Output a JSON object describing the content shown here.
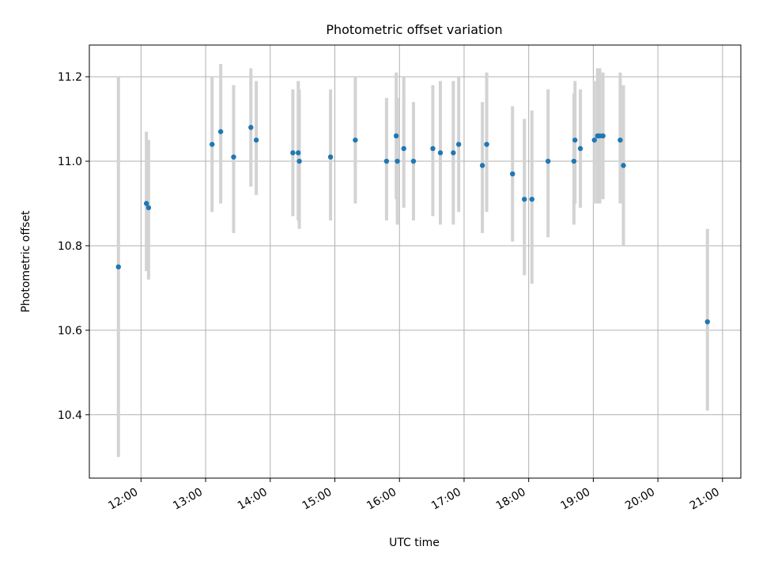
{
  "chart_data": {
    "type": "scatter",
    "title": "Photometric offset variation",
    "xlabel": "UTC time",
    "ylabel": "Photometric offset",
    "x_is_time": true,
    "xlim": [
      "11:12",
      "21:17"
    ],
    "ylim": [
      10.25,
      11.275
    ],
    "xticks": [
      "12:00",
      "13:00",
      "14:00",
      "15:00",
      "16:00",
      "17:00",
      "18:00",
      "19:00",
      "20:00",
      "21:00"
    ],
    "yticks": [
      10.4,
      10.6,
      10.8,
      11.0,
      11.2
    ],
    "ytick_labels": [
      "10.4",
      "10.6",
      "10.8",
      "11.0",
      "11.2"
    ],
    "grid": true,
    "marker_color": "#1f77b4",
    "errorbar_color": "#d3d3d3",
    "points": [
      {
        "t": "11:39",
        "y": 10.75,
        "lo": 10.3,
        "hi": 11.2
      },
      {
        "t": "12:05",
        "y": 10.9,
        "lo": 10.74,
        "hi": 11.07
      },
      {
        "t": "12:07",
        "y": 10.89,
        "lo": 10.72,
        "hi": 11.05
      },
      {
        "t": "13:06",
        "y": 11.04,
        "lo": 10.88,
        "hi": 11.2
      },
      {
        "t": "13:14",
        "y": 11.07,
        "lo": 10.9,
        "hi": 11.23
      },
      {
        "t": "13:26",
        "y": 11.01,
        "lo": 10.83,
        "hi": 11.18
      },
      {
        "t": "13:42",
        "y": 11.08,
        "lo": 10.94,
        "hi": 11.22
      },
      {
        "t": "13:47",
        "y": 11.05,
        "lo": 10.92,
        "hi": 11.19
      },
      {
        "t": "14:21",
        "y": 11.02,
        "lo": 10.87,
        "hi": 11.17
      },
      {
        "t": "14:26",
        "y": 11.02,
        "lo": 10.86,
        "hi": 11.19
      },
      {
        "t": "14:27",
        "y": 11.0,
        "lo": 10.84,
        "hi": 11.17
      },
      {
        "t": "14:56",
        "y": 11.01,
        "lo": 10.86,
        "hi": 11.17
      },
      {
        "t": "15:19",
        "y": 11.05,
        "lo": 10.9,
        "hi": 11.2
      },
      {
        "t": "15:48",
        "y": 11.0,
        "lo": 10.86,
        "hi": 11.15
      },
      {
        "t": "15:57",
        "y": 11.06,
        "lo": 10.91,
        "hi": 11.21
      },
      {
        "t": "15:58",
        "y": 11.0,
        "lo": 10.85,
        "hi": 11.15
      },
      {
        "t": "16:04",
        "y": 11.03,
        "lo": 10.89,
        "hi": 11.2
      },
      {
        "t": "16:13",
        "y": 11.0,
        "lo": 10.86,
        "hi": 11.14
      },
      {
        "t": "16:31",
        "y": 11.03,
        "lo": 10.87,
        "hi": 11.18
      },
      {
        "t": "16:38",
        "y": 11.02,
        "lo": 10.85,
        "hi": 11.19
      },
      {
        "t": "16:50",
        "y": 11.02,
        "lo": 10.85,
        "hi": 11.19
      },
      {
        "t": "16:55",
        "y": 11.04,
        "lo": 10.88,
        "hi": 11.2
      },
      {
        "t": "17:17",
        "y": 10.99,
        "lo": 10.83,
        "hi": 11.14
      },
      {
        "t": "17:21",
        "y": 11.04,
        "lo": 10.88,
        "hi": 11.21
      },
      {
        "t": "17:45",
        "y": 10.97,
        "lo": 10.81,
        "hi": 11.13
      },
      {
        "t": "17:56",
        "y": 10.91,
        "lo": 10.73,
        "hi": 11.1
      },
      {
        "t": "18:03",
        "y": 10.91,
        "lo": 10.71,
        "hi": 11.12
      },
      {
        "t": "18:18",
        "y": 11.0,
        "lo": 10.82,
        "hi": 11.17
      },
      {
        "t": "18:42",
        "y": 11.0,
        "lo": 10.85,
        "hi": 11.16
      },
      {
        "t": "18:43",
        "y": 11.05,
        "lo": 10.9,
        "hi": 11.19
      },
      {
        "t": "18:48",
        "y": 11.03,
        "lo": 10.89,
        "hi": 11.17
      },
      {
        "t": "19:01",
        "y": 11.05,
        "lo": 10.9,
        "hi": 11.19
      },
      {
        "t": "19:04",
        "y": 11.06,
        "lo": 10.9,
        "hi": 11.22
      },
      {
        "t": "19:06",
        "y": 11.06,
        "lo": 10.9,
        "hi": 11.22
      },
      {
        "t": "19:09",
        "y": 11.06,
        "lo": 10.91,
        "hi": 11.21
      },
      {
        "t": "19:25",
        "y": 11.05,
        "lo": 10.9,
        "hi": 11.21
      },
      {
        "t": "19:28",
        "y": 10.99,
        "lo": 10.8,
        "hi": 11.18
      },
      {
        "t": "20:46",
        "y": 10.62,
        "lo": 10.41,
        "hi": 10.84
      }
    ]
  }
}
